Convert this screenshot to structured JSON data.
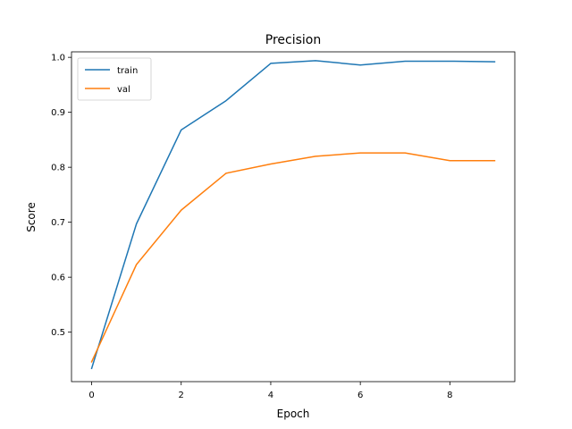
{
  "chart_data": {
    "type": "line",
    "title": "Precision",
    "xlabel": "Epoch",
    "ylabel": "Score",
    "x": [
      0,
      1,
      2,
      3,
      4,
      5,
      6,
      7,
      8,
      9
    ],
    "xlim": [
      -0.45,
      9.45
    ],
    "ylim": [
      0.41,
      1.01
    ],
    "x_ticks": [
      0,
      2,
      4,
      6,
      8
    ],
    "y_ticks": [
      0.5,
      0.6,
      0.7,
      0.8,
      0.9,
      1.0
    ],
    "x_tick_labels": [
      "0",
      "2",
      "4",
      "6",
      "8"
    ],
    "y_tick_labels": [
      "0.5",
      "0.6",
      "0.7",
      "0.8",
      "0.9",
      "1.0"
    ],
    "grid": false,
    "legend": "top-left",
    "series": [
      {
        "name": "train",
        "color": "#1f77b4",
        "values": [
          0.434,
          0.697,
          0.868,
          0.921,
          0.989,
          0.994,
          0.986,
          0.993,
          0.993,
          0.992
        ]
      },
      {
        "name": "val",
        "color": "#ff7f0e",
        "values": [
          0.446,
          0.623,
          0.722,
          0.789,
          0.806,
          0.82,
          0.826,
          0.826,
          0.812,
          0.812
        ]
      }
    ]
  }
}
